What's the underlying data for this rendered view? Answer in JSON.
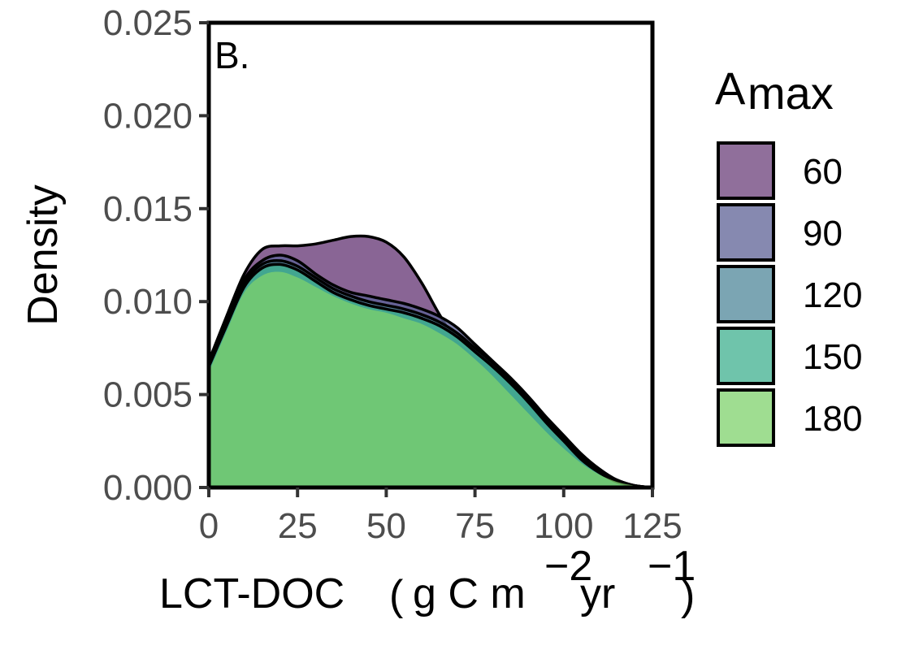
{
  "chart_data": {
    "type": "area",
    "panel_label": "B.",
    "xlabel": {
      "main": "LCT-DOC",
      "units": [
        "g C m",
        "−2",
        " yr",
        "−1"
      ]
    },
    "ylabel": "Density",
    "xlim": [
      0,
      125
    ],
    "ylim": [
      0,
      0.025
    ],
    "x_ticks": [
      0,
      25,
      50,
      75,
      100,
      125
    ],
    "x_tick_labels": [
      "0",
      "25",
      "50",
      "75",
      "100",
      "125"
    ],
    "y_ticks": [
      0,
      0.005,
      0.01,
      0.015,
      0.02,
      0.025
    ],
    "y_tick_labels": [
      "0.000",
      "0.005",
      "0.010",
      "0.015",
      "0.020",
      "0.025"
    ],
    "legend": {
      "title": "A",
      "title_subscript": "max",
      "position": "right"
    },
    "x": [
      0,
      5,
      10,
      15,
      20,
      25,
      30,
      35,
      40,
      45,
      50,
      55,
      60,
      65,
      70,
      75,
      80,
      85,
      90,
      95,
      100,
      105,
      110,
      115,
      120,
      125
    ],
    "series": [
      {
        "name": "60",
        "color": "#6b3f7a",
        "values": [
          0.0068,
          0.0092,
          0.0115,
          0.0128,
          0.013,
          0.013,
          0.0131,
          0.0133,
          0.0135,
          0.0135,
          0.0132,
          0.0124,
          0.011,
          0.0093,
          0.0078,
          0.007,
          0.0063,
          0.0056,
          0.0048,
          0.0038,
          0.0028,
          0.0018,
          0.001,
          0.0004,
          0.0001,
          0.0
        ]
      },
      {
        "name": "90",
        "color": "#5e6196",
        "values": [
          0.0067,
          0.009,
          0.0112,
          0.0122,
          0.0125,
          0.0122,
          0.0115,
          0.0109,
          0.0105,
          0.0103,
          0.0101,
          0.0099,
          0.0096,
          0.0092,
          0.0086,
          0.0077,
          0.0068,
          0.0059,
          0.0049,
          0.0038,
          0.0027,
          0.0017,
          0.0009,
          0.0004,
          0.0001,
          0.0
        ]
      },
      {
        "name": "120",
        "color": "#4f8799",
        "values": [
          0.0066,
          0.0088,
          0.011,
          0.012,
          0.0122,
          0.0119,
          0.0113,
          0.0107,
          0.0103,
          0.01,
          0.0098,
          0.0096,
          0.0093,
          0.0089,
          0.0083,
          0.0075,
          0.0067,
          0.0058,
          0.0048,
          0.0037,
          0.0026,
          0.0016,
          0.0009,
          0.0004,
          0.0001,
          0.0
        ]
      },
      {
        "name": "150",
        "color": "#3fb08f",
        "values": [
          0.0065,
          0.0087,
          0.0108,
          0.0118,
          0.012,
          0.0117,
          0.0111,
          0.0105,
          0.0101,
          0.0098,
          0.0096,
          0.0094,
          0.0091,
          0.0087,
          0.0081,
          0.0073,
          0.0065,
          0.0056,
          0.0046,
          0.0035,
          0.0025,
          0.0015,
          0.0008,
          0.0003,
          0.0001,
          0.0
        ]
      },
      {
        "name": "180",
        "color": "#7fd16c",
        "values": [
          0.0062,
          0.0084,
          0.0105,
          0.0114,
          0.0116,
          0.0113,
          0.0108,
          0.0103,
          0.0099,
          0.0096,
          0.0094,
          0.0091,
          0.0088,
          0.0083,
          0.0077,
          0.0069,
          0.006,
          0.005,
          0.004,
          0.003,
          0.0021,
          0.0013,
          0.0007,
          0.0003,
          0.0001,
          0.0
        ]
      }
    ]
  }
}
